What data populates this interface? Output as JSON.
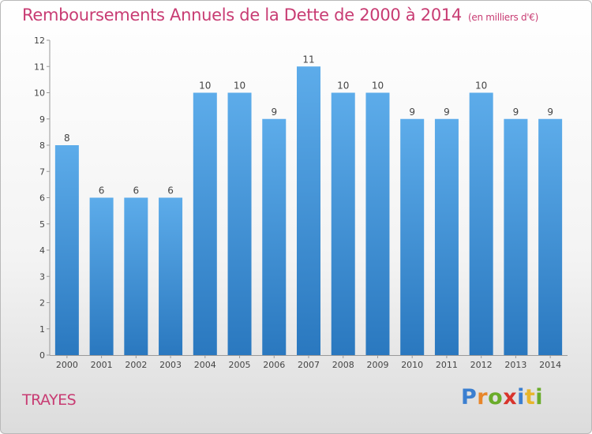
{
  "header": {
    "title": "Remboursements Annuels de la Dette de 2000 à 2014",
    "unit": "(en milliers d'€)"
  },
  "footer": {
    "commune": "TRAYES",
    "logo_letters": [
      "P",
      "r",
      "o",
      "x",
      "i",
      "t",
      "i"
    ]
  },
  "colors": {
    "bar_top": "#5dacea",
    "bar_bottom": "#2a78bf",
    "title": "#c83c73"
  },
  "chart_data": {
    "type": "bar",
    "title": "Remboursements Annuels de la Dette de 2000 à 2014",
    "categories": [
      "2000",
      "2001",
      "2002",
      "2003",
      "2004",
      "2005",
      "2006",
      "2007",
      "2008",
      "2009",
      "2010",
      "2011",
      "2012",
      "2013",
      "2014"
    ],
    "values": [
      8,
      6,
      6,
      6,
      10,
      10,
      9,
      11,
      10,
      10,
      9,
      9,
      10,
      9,
      9
    ],
    "ylim": [
      0,
      12
    ],
    "yticks": [
      0,
      1,
      2,
      3,
      4,
      5,
      6,
      7,
      8,
      9,
      10,
      11,
      12
    ],
    "grid": false,
    "data_labels": true
  }
}
